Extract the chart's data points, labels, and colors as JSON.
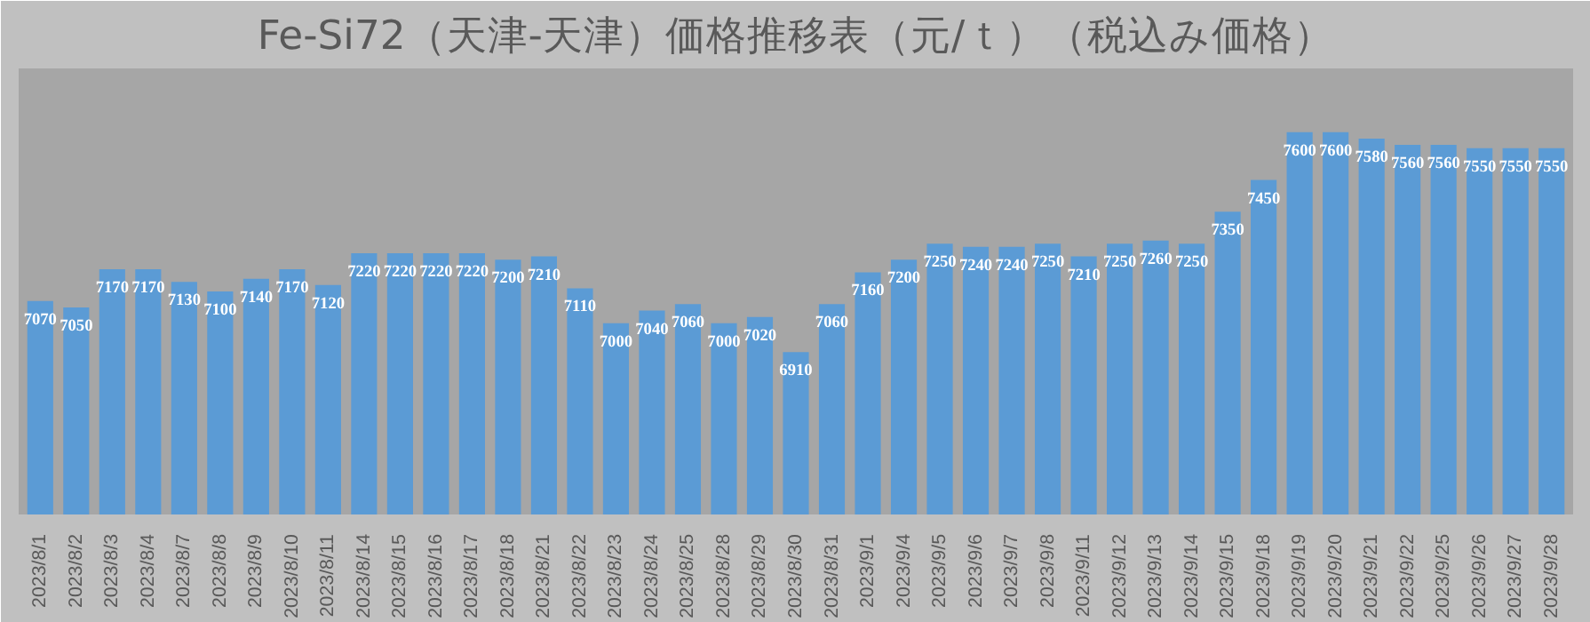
{
  "chart_data": {
    "type": "bar",
    "title": "Fe-Si72（天津-天津）価格推移表（元/ｔ）（税込み価格）",
    "categories": [
      "2023/8/1",
      "2023/8/2",
      "2023/8/3",
      "2023/8/4",
      "2023/8/7",
      "2023/8/8",
      "2023/8/9",
      "2023/8/10",
      "2023/8/11",
      "2023/8/14",
      "2023/8/15",
      "2023/8/16",
      "2023/8/17",
      "2023/8/18",
      "2023/8/21",
      "2023/8/22",
      "2023/8/23",
      "2023/8/24",
      "2023/8/25",
      "2023/8/28",
      "2023/8/29",
      "2023/8/30",
      "2023/8/31",
      "2023/9/1",
      "2023/9/4",
      "2023/9/5",
      "2023/9/6",
      "2023/9/7",
      "2023/9/8",
      "2023/9/11",
      "2023/9/12",
      "2023/9/13",
      "2023/9/14",
      "2023/9/15",
      "2023/9/18",
      "2023/9/19",
      "2023/9/20",
      "2023/9/21",
      "2023/9/22",
      "2023/9/25",
      "2023/9/26",
      "2023/9/27",
      "2023/9/28"
    ],
    "values": [
      7070,
      7050,
      7170,
      7170,
      7130,
      7100,
      7140,
      7170,
      7120,
      7220,
      7220,
      7220,
      7220,
      7200,
      7210,
      7110,
      7000,
      7040,
      7060,
      7000,
      7020,
      6910,
      7060,
      7160,
      7200,
      7250,
      7240,
      7240,
      7250,
      7210,
      7250,
      7260,
      7250,
      7350,
      7450,
      7600,
      7600,
      7580,
      7560,
      7560,
      7550,
      7550,
      7550
    ],
    "color": "#5b9bd5",
    "ylim": [
      6400,
      7800
    ],
    "tick_labels": "x",
    "data_labels": true,
    "grid": false
  }
}
